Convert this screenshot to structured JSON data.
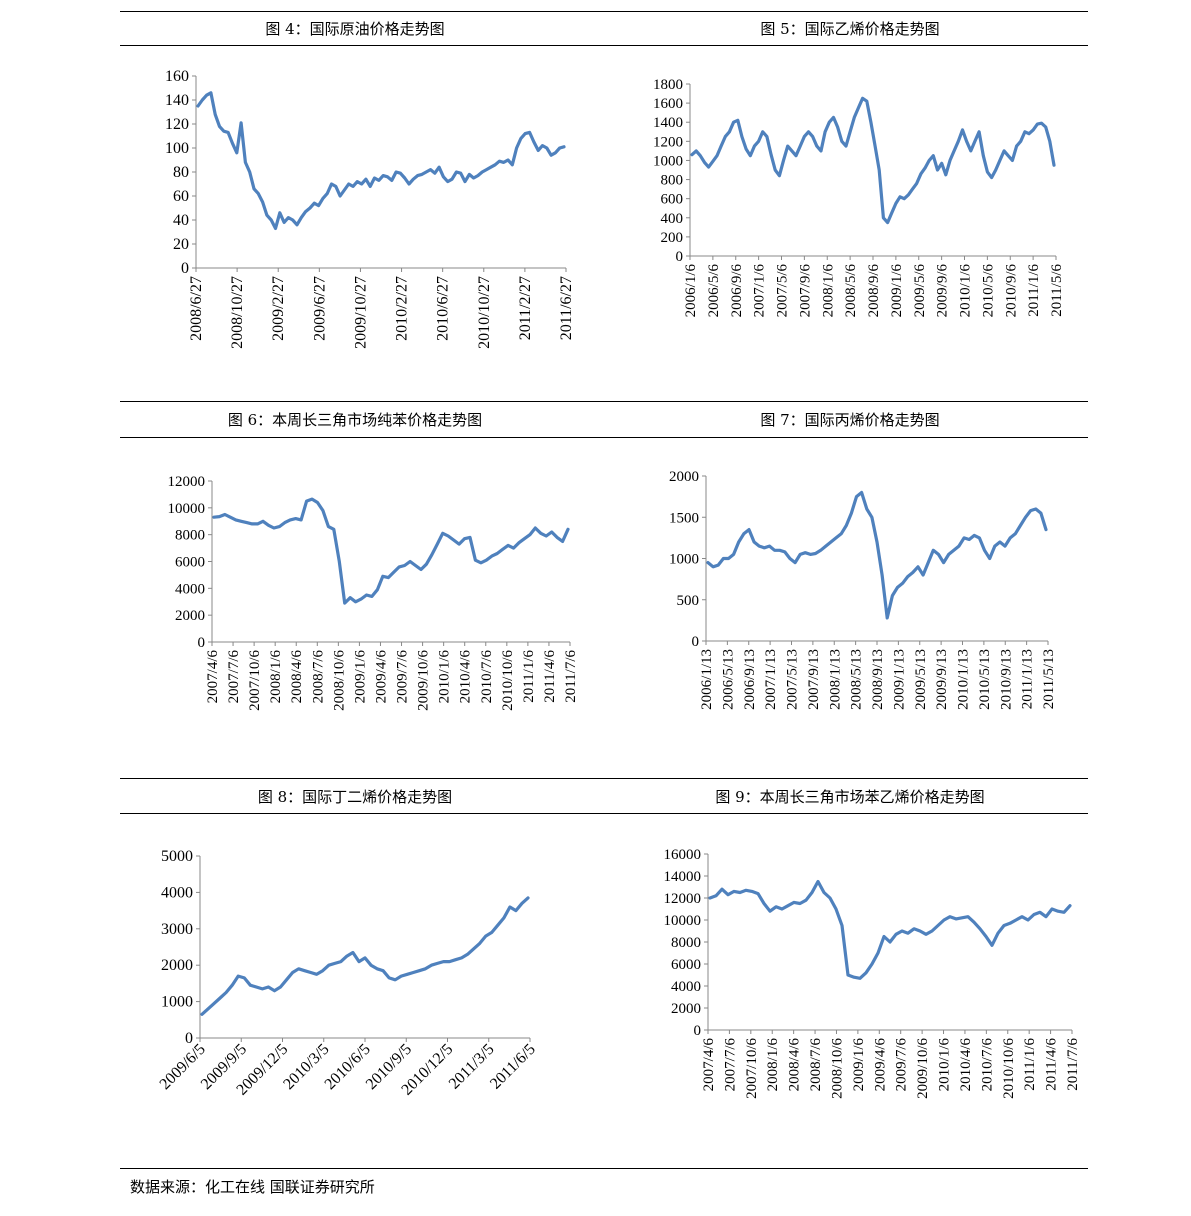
{
  "source_note": "数据来源：化工在线 国联证券研究所",
  "line_color": "#4F81BD",
  "chart_data": [
    {
      "type": "line",
      "title": "图 4：国际原油价格走势图",
      "ylim": [
        0,
        160
      ],
      "y_ticks": [
        "0",
        "20",
        "40",
        "60",
        "80",
        "100",
        "120",
        "140",
        "160"
      ],
      "x_labels": [
        "2008/6/27",
        "2008/10/27",
        "2009/2/27",
        "2009/6/27",
        "2009/10/27",
        "2010/2/27",
        "2010/6/27",
        "2010/10/27",
        "2011/2/27",
        "2011/6/27"
      ],
      "series": [
        {
          "values": [
            135,
            140,
            144,
            146,
            128,
            118,
            114,
            113,
            104,
            96,
            121,
            88,
            80,
            66,
            62,
            55,
            44,
            40,
            33,
            46,
            38,
            42,
            40,
            36,
            42,
            47,
            50,
            54,
            52,
            58,
            62,
            70,
            68,
            60,
            65,
            70,
            68,
            72,
            70,
            74,
            68,
            75,
            73,
            77,
            76,
            73,
            80,
            79,
            75,
            70,
            74,
            77,
            78,
            80,
            82,
            79,
            84,
            76,
            72,
            74,
            80,
            79,
            72,
            78,
            75,
            77,
            80,
            82,
            84,
            86,
            89,
            88,
            90,
            86,
            100,
            108,
            112,
            113,
            105,
            98,
            102,
            100,
            94,
            96,
            100,
            101
          ]
        }
      ]
    },
    {
      "type": "line",
      "title": "图 5：国际乙烯价格走势图",
      "ylim": [
        0,
        1800
      ],
      "y_ticks": [
        "0",
        "200",
        "400",
        "600",
        "800",
        "1000",
        "1200",
        "1400",
        "1600",
        "1800"
      ],
      "x_labels": [
        "2006/1/6",
        "2006/5/6",
        "2006/9/6",
        "2007/1/6",
        "2007/5/6",
        "2007/9/6",
        "2008/1/6",
        "2008/5/6",
        "2008/9/6",
        "2009/1/6",
        "2009/5/6",
        "2009/9/6",
        "2010/1/6",
        "2010/5/6",
        "2010/9/6",
        "2011/1/6",
        "2011/5/6"
      ],
      "series": [
        {
          "values": [
            1060,
            1100,
            1050,
            980,
            930,
            990,
            1050,
            1150,
            1250,
            1300,
            1400,
            1420,
            1250,
            1120,
            1050,
            1150,
            1200,
            1300,
            1250,
            1060,
            900,
            840,
            1000,
            1150,
            1100,
            1050,
            1150,
            1250,
            1300,
            1250,
            1150,
            1100,
            1300,
            1400,
            1450,
            1350,
            1200,
            1150,
            1300,
            1450,
            1550,
            1650,
            1620,
            1400,
            1150,
            900,
            400,
            350,
            450,
            550,
            620,
            600,
            640,
            700,
            760,
            860,
            920,
            1000,
            1050,
            900,
            970,
            850,
            1000,
            1100,
            1200,
            1320,
            1200,
            1100,
            1200,
            1300,
            1050,
            880,
            820,
            900,
            1000,
            1100,
            1050,
            1000,
            1150,
            1200,
            1300,
            1280,
            1320,
            1380,
            1390,
            1350,
            1200,
            950
          ]
        }
      ]
    },
    {
      "type": "line",
      "title": "图 6：本周长三角市场纯苯价格走势图",
      "ylim": [
        0,
        12000
      ],
      "y_ticks": [
        "0",
        "2000",
        "4000",
        "6000",
        "8000",
        "10000",
        "12000"
      ],
      "x_labels": [
        "2007/4/6",
        "2007/7/6",
        "2007/10/6",
        "2008/1/6",
        "2008/4/6",
        "2008/7/6",
        "2008/10/6",
        "2009/1/6",
        "2009/4/6",
        "2009/7/6",
        "2009/10/6",
        "2010/1/6",
        "2010/4/6",
        "2010/7/6",
        "2010/10/6",
        "2011/1/6",
        "2011/4/6",
        "2011/7/6"
      ],
      "series": [
        {
          "values": [
            9300,
            9350,
            9500,
            9300,
            9100,
            9000,
            8900,
            8800,
            8800,
            9000,
            8700,
            8500,
            8600,
            8900,
            9100,
            9200,
            9100,
            10500,
            10650,
            10400,
            9800,
            8600,
            8400,
            6000,
            2900,
            3300,
            3000,
            3200,
            3500,
            3400,
            3900,
            4900,
            4800,
            5200,
            5600,
            5700,
            6000,
            5700,
            5400,
            5800,
            6500,
            7300,
            8100,
            7900,
            7600,
            7300,
            7700,
            7800,
            6100,
            5900,
            6100,
            6400,
            6600,
            6900,
            7200,
            7000,
            7400,
            7700,
            8000,
            8500,
            8100,
            7900,
            8200,
            7800,
            7500,
            8400
          ]
        }
      ]
    },
    {
      "type": "line",
      "title": "图 7：国际丙烯价格走势图",
      "ylim": [
        0,
        2000
      ],
      "y_ticks": [
        "0",
        "500",
        "1000",
        "1500",
        "2000"
      ],
      "x_labels": [
        "2006/1/13",
        "2006/5/13",
        "2006/9/13",
        "2007/1/13",
        "2007/5/13",
        "2007/9/13",
        "2008/1/13",
        "2008/5/13",
        "2008/9/13",
        "2009/1/13",
        "2009/5/13",
        "2009/9/13",
        "2010/1/13",
        "2010/5/13",
        "2010/9/13",
        "2011/1/13",
        "2011/5/13"
      ],
      "series": [
        {
          "values": [
            950,
            900,
            920,
            1000,
            1000,
            1050,
            1200,
            1300,
            1350,
            1200,
            1150,
            1130,
            1150,
            1100,
            1100,
            1080,
            1000,
            950,
            1050,
            1070,
            1050,
            1060,
            1100,
            1150,
            1200,
            1250,
            1300,
            1400,
            1550,
            1750,
            1800,
            1600,
            1500,
            1200,
            800,
            280,
            550,
            650,
            700,
            780,
            830,
            900,
            800,
            950,
            1100,
            1050,
            950,
            1050,
            1100,
            1150,
            1250,
            1230,
            1280,
            1250,
            1100,
            1000,
            1150,
            1200,
            1150,
            1250,
            1300,
            1400,
            1500,
            1580,
            1600,
            1550,
            1350
          ]
        }
      ]
    },
    {
      "type": "line",
      "title": "图 8：国际丁二烯价格走势图",
      "ylim": [
        0,
        5000
      ],
      "y_ticks": [
        "0",
        "1000",
        "2000",
        "3000",
        "4000",
        "5000"
      ],
      "x_labels": [
        "2009/6/5",
        "2009/9/5",
        "2009/12/5",
        "2010/3/5",
        "2010/6/5",
        "2010/9/5",
        "2010/12/5",
        "2011/3/5",
        "2011/6/5"
      ],
      "series": [
        {
          "values": [
            650,
            800,
            950,
            1100,
            1250,
            1450,
            1700,
            1650,
            1450,
            1400,
            1350,
            1400,
            1300,
            1400,
            1600,
            1800,
            1900,
            1850,
            1800,
            1750,
            1850,
            2000,
            2050,
            2100,
            2250,
            2350,
            2100,
            2200,
            2000,
            1900,
            1850,
            1650,
            1600,
            1700,
            1750,
            1800,
            1850,
            1900,
            2000,
            2050,
            2100,
            2100,
            2150,
            2200,
            2300,
            2450,
            2600,
            2800,
            2900,
            3100,
            3300,
            3600,
            3500,
            3700,
            3850
          ]
        }
      ]
    },
    {
      "type": "line",
      "title": "图 9：本周长三角市场苯乙烯价格走势图",
      "ylim": [
        0,
        16000
      ],
      "y_ticks": [
        "0",
        "2000",
        "4000",
        "6000",
        "8000",
        "10000",
        "12000",
        "14000",
        "16000"
      ],
      "x_labels": [
        "2007/4/6",
        "2007/7/6",
        "2007/10/6",
        "2008/1/6",
        "2008/4/6",
        "2008/7/6",
        "2008/10/6",
        "2009/1/6",
        "2009/4/6",
        "2009/7/6",
        "2009/10/6",
        "2010/1/6",
        "2010/4/6",
        "2010/7/6",
        "2010/10/6",
        "2011/1/6",
        "2011/4/6",
        "2011/7/6"
      ],
      "series": [
        {
          "values": [
            12000,
            12200,
            12800,
            12300,
            12600,
            12500,
            12700,
            12600,
            12400,
            11500,
            10800,
            11200,
            11000,
            11300,
            11600,
            11500,
            11800,
            12500,
            13500,
            12500,
            12000,
            11000,
            9500,
            5000,
            4800,
            4700,
            5200,
            6000,
            7000,
            8500,
            8000,
            8700,
            9000,
            8800,
            9200,
            9000,
            8700,
            9000,
            9500,
            10000,
            10300,
            10100,
            10200,
            10300,
            9800,
            9200,
            8500,
            7700,
            8800,
            9500,
            9700,
            10000,
            10300,
            10000,
            10500,
            10700,
            10300,
            11000,
            10800,
            10700,
            11300
          ]
        }
      ]
    }
  ]
}
